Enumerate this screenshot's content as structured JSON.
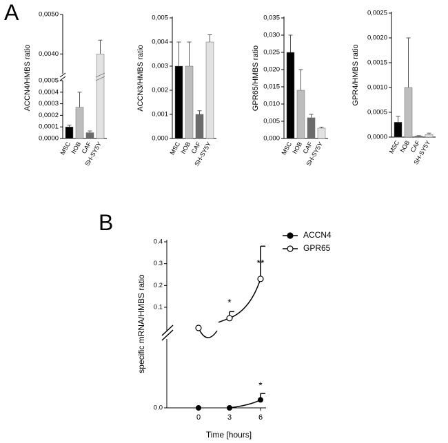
{
  "panel_labels": {
    "a": "A",
    "b": "B"
  },
  "chart_data": [
    {
      "type": "bar",
      "panel": "A",
      "categories": [
        "MSC",
        "hOB",
        "CAF",
        "SH-SY5Y"
      ],
      "values": [
        0.0001,
        0.00027,
        5e-05,
        0.004
      ],
      "errors": [
        1.5e-05,
        0.00013,
        1.5e-05,
        0.00035
      ],
      "ylabel": "ACCN4/HMBS ratio",
      "scale": "broken",
      "lower_ylim": [
        0,
        0.0005
      ],
      "upper_ylim": [
        0.0035,
        0.005
      ],
      "yticks_lower": [
        "0,0000",
        "0,0001",
        "0,0002",
        "0,0003",
        "0,0004",
        "0,0005"
      ],
      "yticks_upper": [
        "0,0040",
        "0,0050"
      ],
      "bar_colors": [
        "#000000",
        "#bdbdbd",
        "#6b6b6b",
        "#e2e2e2"
      ]
    },
    {
      "type": "bar",
      "panel": "A",
      "categories": [
        "MSC",
        "hOB",
        "CAF",
        "SH-SY5Y"
      ],
      "values": [
        0.003,
        0.003,
        0.001,
        0.004
      ],
      "errors": [
        0.001,
        0.001,
        0.00015,
        0.0003
      ],
      "ylabel": "ACCN3/HMBS ratio",
      "ylim": [
        0,
        0.005
      ],
      "yticks": [
        "0,000",
        "0,001",
        "0,002",
        "0,003",
        "0,004",
        "0,005"
      ],
      "bar_colors": [
        "#000000",
        "#bdbdbd",
        "#6b6b6b",
        "#e2e2e2"
      ]
    },
    {
      "type": "bar",
      "panel": "A",
      "categories": [
        "MSC",
        "hOB",
        "CAF",
        "SH-SY5Y"
      ],
      "values": [
        0.025,
        0.014,
        0.006,
        0.003
      ],
      "errors": [
        0.005,
        0.006,
        0.001,
        0.0003
      ],
      "ylabel": "GPR65/HMBS ratio",
      "ylim": [
        0,
        0.035
      ],
      "yticks": [
        "0,000",
        "0,005",
        "0,010",
        "0,015",
        "0,020",
        "0,025",
        "0,030",
        "0,035"
      ],
      "bar_colors": [
        "#000000",
        "#bdbdbd",
        "#6b6b6b",
        "#e2e2e2"
      ]
    },
    {
      "type": "bar",
      "panel": "A",
      "categories": [
        "MSC",
        "hOB",
        "CAF",
        "SH-SY5Y"
      ],
      "values": [
        0.0003,
        0.001,
        2e-05,
        5e-05
      ],
      "errors": [
        0.00012,
        0.001,
        1e-05,
        3e-05
      ],
      "ylabel": "GPR4/HMBS ratio",
      "ylim": [
        0,
        0.0025
      ],
      "yticks": [
        "0,0000",
        "0,0005",
        "0,0010",
        "0,0015",
        "0,0020",
        "0,0025"
      ],
      "bar_colors": [
        "#000000",
        "#bdbdbd",
        "#6b6b6b",
        "#e2e2e2"
      ]
    },
    {
      "type": "line",
      "panel": "B",
      "xlabel": "Time [hours]",
      "ylabel": "specific mRNA/HMBS ratio",
      "x": [
        0,
        3,
        6
      ],
      "xticks": [
        "0",
        "3",
        "6"
      ],
      "yticks_upper": [
        "0.1",
        "0.2",
        "0.3",
        "0.4"
      ],
      "yticks_lower": [
        "0.0"
      ],
      "scale": "broken",
      "series": [
        {
          "name": "ACCN4",
          "marker": "filled-circle",
          "values": [
            0.0,
            0.0,
            0.01
          ],
          "errors": [
            0,
            0,
            0.008
          ],
          "annotations": [
            "",
            "",
            "*"
          ]
        },
        {
          "name": "GPR65",
          "marker": "open-circle",
          "values": [
            0.03,
            0.05,
            0.23
          ],
          "errors": [
            0,
            0.03,
            0.15
          ],
          "annotations": [
            "",
            "*",
            "**"
          ]
        }
      ]
    }
  ]
}
